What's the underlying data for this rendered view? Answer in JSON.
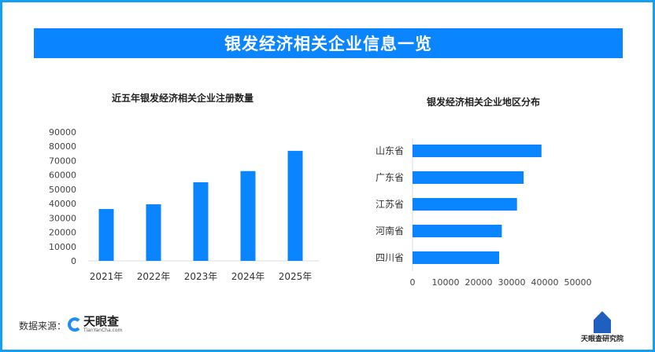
{
  "header": {
    "title": "银发经济相关企业信息一览"
  },
  "colors": {
    "bar": "#0a84ff",
    "frame": "#14a0f0"
  },
  "footer": {
    "source_label": "数据来源：",
    "source_logo": "天眼查",
    "source_logo_sub": "TianYanCha.com",
    "brand": "天眼查研究院"
  },
  "chart_data": [
    {
      "type": "bar",
      "title": "近五年银发经济相关企业注册数量",
      "categories": [
        "2021年",
        "2022年",
        "2023年",
        "2024年",
        "2025年"
      ],
      "values": [
        36200,
        39500,
        54900,
        62700,
        76800
      ],
      "ylim": [
        0,
        90000
      ],
      "yticks": [
        0,
        10000,
        20000,
        30000,
        40000,
        50000,
        60000,
        70000,
        80000,
        90000
      ],
      "grid": false
    },
    {
      "type": "bar",
      "orientation": "horizontal",
      "title": "银发经济相关企业地区分布",
      "categories": [
        "山东省",
        "广东省",
        "江苏省",
        "河南省",
        "四川省"
      ],
      "values": [
        39000,
        33600,
        31600,
        27000,
        26200
      ],
      "xlim": [
        0,
        50000
      ],
      "xticks": [
        0,
        10000,
        20000,
        30000,
        40000,
        50000
      ],
      "grid": false
    }
  ]
}
